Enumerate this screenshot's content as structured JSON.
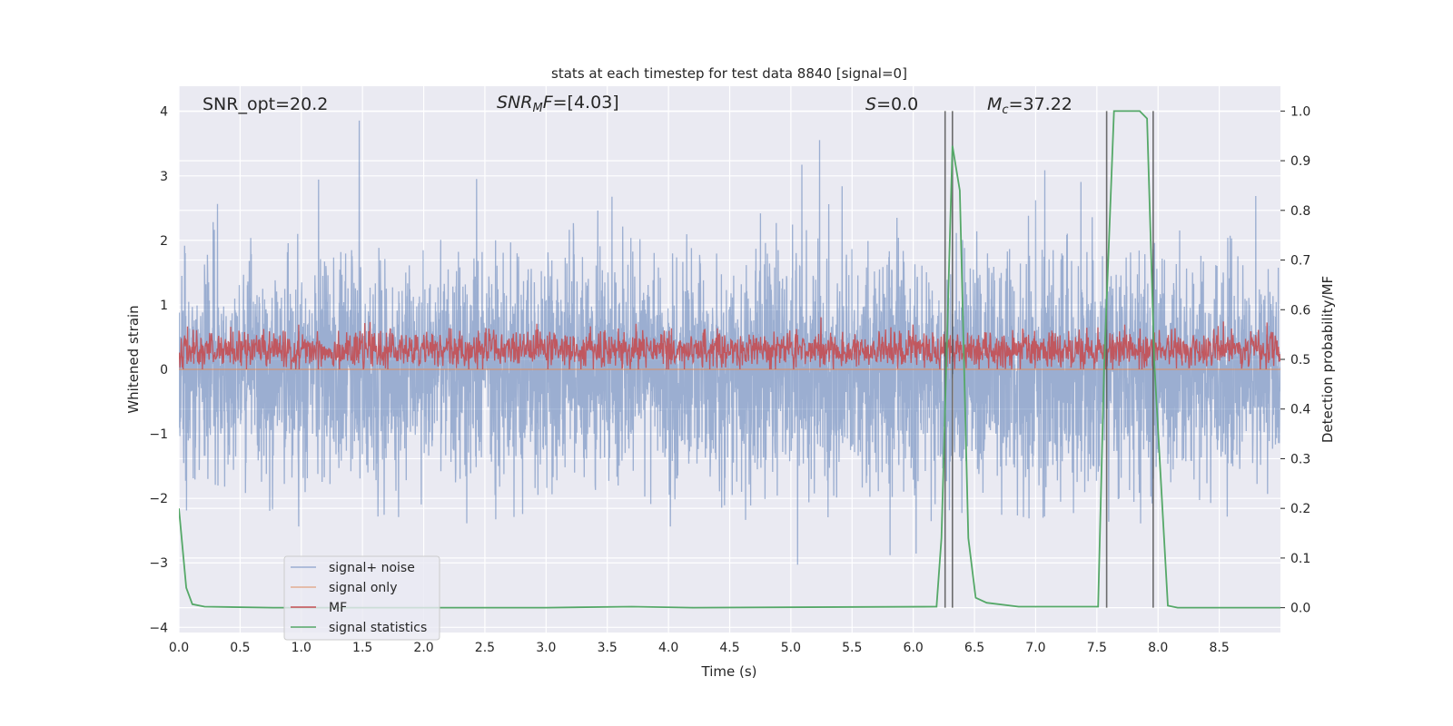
{
  "chart_data": {
    "type": "line",
    "title": "stats at each timestep for test data 8840 [signal=0]",
    "xlabel": "Time (s)",
    "ylabel": "Whitened strain",
    "ylabel_right": "Detection probability/MF",
    "xlim": [
      0,
      9.0
    ],
    "ylim": [
      -4.08,
      4.39
    ],
    "ylim_right": [
      -0.05,
      1.05
    ],
    "grid": true,
    "x_ticks": [
      "0.0",
      "0.5",
      "1.0",
      "1.5",
      "2.0",
      "2.5",
      "3.0",
      "3.5",
      "4.0",
      "4.5",
      "5.0",
      "5.5",
      "6.0",
      "6.5",
      "7.0",
      "7.5",
      "8.0",
      "8.5"
    ],
    "y_ticks": [
      "−4",
      "−3",
      "−2",
      "−1",
      "0",
      "1",
      "2",
      "3",
      "4"
    ],
    "y_ticks_right": [
      "0.0",
      "0.1",
      "0.2",
      "0.3",
      "0.4",
      "0.5",
      "0.6",
      "0.7",
      "0.8",
      "0.9",
      "1.0"
    ],
    "annotations": {
      "snr_opt": "SNR_opt=20.2",
      "snr_mf_base": "SNR",
      "snr_mf_sub": "M",
      "snr_mf_rest": "F=[4.03]",
      "s_var": "S",
      "s_rest": "=0.0",
      "mc_base": "M",
      "mc_sub": "c",
      "mc_rest": "=37.22"
    },
    "legend": {
      "placement": "lower-left",
      "entries": [
        "signal+ noise",
        "signal only",
        "MF",
        "signal statistics"
      ]
    },
    "colors": {
      "noise": "#4c72b0",
      "signal_only": "#dd8452",
      "mf": "#c44e52",
      "stats": "#55a868",
      "vlines": "#555555",
      "background": "#eaeaf2"
    },
    "series": [
      {
        "name": "signal+ noise",
        "axis": "left",
        "model": {
          "n_samples": 4600,
          "mean": 0.0,
          "std": 0.85,
          "seed": 8840
        }
      },
      {
        "name": "signal only",
        "axis": "left",
        "constant": 0.0
      },
      {
        "name": "MF",
        "axis": "left",
        "model": {
          "n_samples": 2300,
          "mean": 0.3,
          "std": 0.15,
          "seed": 42
        }
      },
      {
        "name": "signal statistics",
        "axis": "right",
        "x": [
          0.0,
          0.06,
          0.11,
          0.21,
          0.77,
          3.0,
          3.7,
          4.2,
          6.19,
          6.23,
          6.32,
          6.38,
          6.45,
          6.51,
          6.6,
          6.86,
          7.51,
          7.56,
          7.64,
          7.85,
          7.91,
          7.97,
          8.08,
          8.16,
          9.0
        ],
        "y": [
          0.2,
          0.04,
          0.007,
          0.002,
          0.0,
          0.0,
          0.002,
          0.0,
          0.002,
          0.14,
          0.93,
          0.84,
          0.14,
          0.02,
          0.01,
          0.002,
          0.002,
          0.49,
          1.0,
          1.0,
          0.985,
          0.49,
          0.004,
          0.0,
          0.0
        ]
      }
    ],
    "vertical_lines": [
      6.26,
      6.32,
      7.58,
      7.96
    ]
  }
}
